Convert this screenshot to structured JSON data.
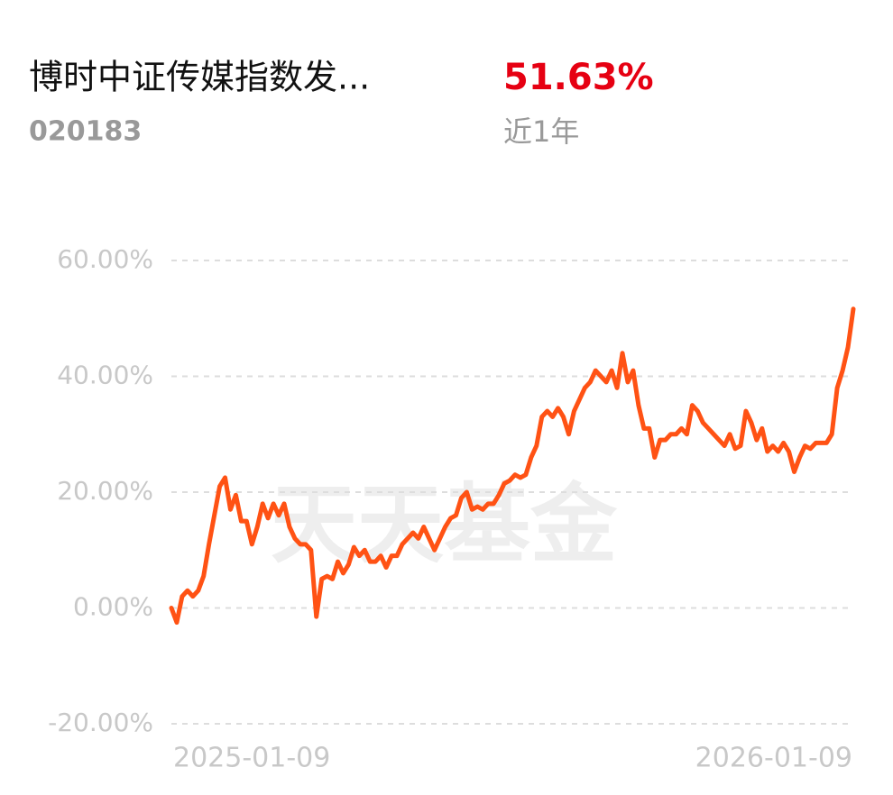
{
  "header": {
    "name": "博时中证传媒指数发...",
    "code": "020183",
    "return": "51.63%",
    "period": "近1年"
  },
  "watermark": "天天基金",
  "chart_data": {
    "type": "line",
    "categories": [
      "2025-01-09",
      null,
      null,
      null,
      null,
      null,
      null,
      null,
      null,
      null,
      null,
      null,
      null,
      null,
      null,
      null,
      null,
      null,
      null,
      null,
      null,
      null,
      null,
      null,
      null,
      null,
      null,
      null,
      null,
      null,
      null,
      null,
      null,
      null,
      null,
      null,
      null,
      null,
      null,
      null,
      null,
      null,
      null,
      null,
      null,
      null,
      null,
      null,
      null,
      null,
      null,
      null,
      null,
      null,
      null,
      null,
      null,
      null,
      null,
      null,
      null,
      null,
      null,
      null,
      null,
      null,
      null,
      null,
      null,
      null,
      null,
      null,
      null,
      null,
      null,
      null,
      null,
      null,
      null,
      null,
      null,
      null,
      null,
      null,
      null,
      null,
      null,
      null,
      null,
      null,
      null,
      null,
      null,
      null,
      null,
      null,
      null,
      null,
      null,
      null,
      null,
      null,
      null,
      null,
      null,
      null,
      null,
      null,
      null,
      null,
      null,
      null,
      null,
      null,
      null,
      null,
      null,
      null,
      null,
      null,
      null,
      null,
      null,
      null,
      null,
      null,
      null,
      "2026-01-09"
    ],
    "series": [
      {
        "color": "#ff5214",
        "values": [
          0,
          -2.5,
          2,
          3,
          2,
          3,
          5.5,
          11,
          16,
          21,
          22.5,
          17,
          19.5,
          15,
          15,
          11,
          14,
          18,
          15.5,
          18,
          16,
          18,
          14,
          12,
          11,
          11,
          10,
          -1.5,
          5,
          5.5,
          5,
          8,
          6,
          7.5,
          10.5,
          9,
          10,
          8,
          8,
          9,
          7,
          9,
          9,
          11,
          12,
          13,
          12,
          14,
          12,
          10,
          12,
          14,
          15.5,
          16,
          19,
          20,
          17,
          17.5,
          17,
          18,
          18,
          19.5,
          21.5,
          22,
          23,
          22.5,
          23,
          26,
          28,
          33,
          34,
          33,
          34.5,
          33,
          30,
          34,
          36,
          38,
          39,
          41,
          40,
          39,
          41,
          38,
          44,
          39,
          41,
          35,
          31,
          31,
          26,
          29,
          29,
          30,
          30,
          31,
          30,
          35,
          34,
          32,
          31,
          30,
          29,
          28,
          30,
          27.5,
          28,
          34,
          32,
          29,
          31,
          27,
          28,
          27,
          28.5,
          27,
          23.5,
          26,
          28,
          27.5,
          28.5,
          28.5,
          28.5,
          30,
          38,
          41,
          45,
          51.63
        ]
      }
    ],
    "ylim": [
      -20,
      60
    ],
    "yticks": [
      {
        "value": -20,
        "label": "-20.00%"
      },
      {
        "value": 0,
        "label": "0.00%"
      },
      {
        "value": 20,
        "label": "20.00%"
      },
      {
        "value": 40,
        "label": "40.00%"
      },
      {
        "value": 60,
        "label": "60.00%"
      }
    ],
    "grid": true
  }
}
